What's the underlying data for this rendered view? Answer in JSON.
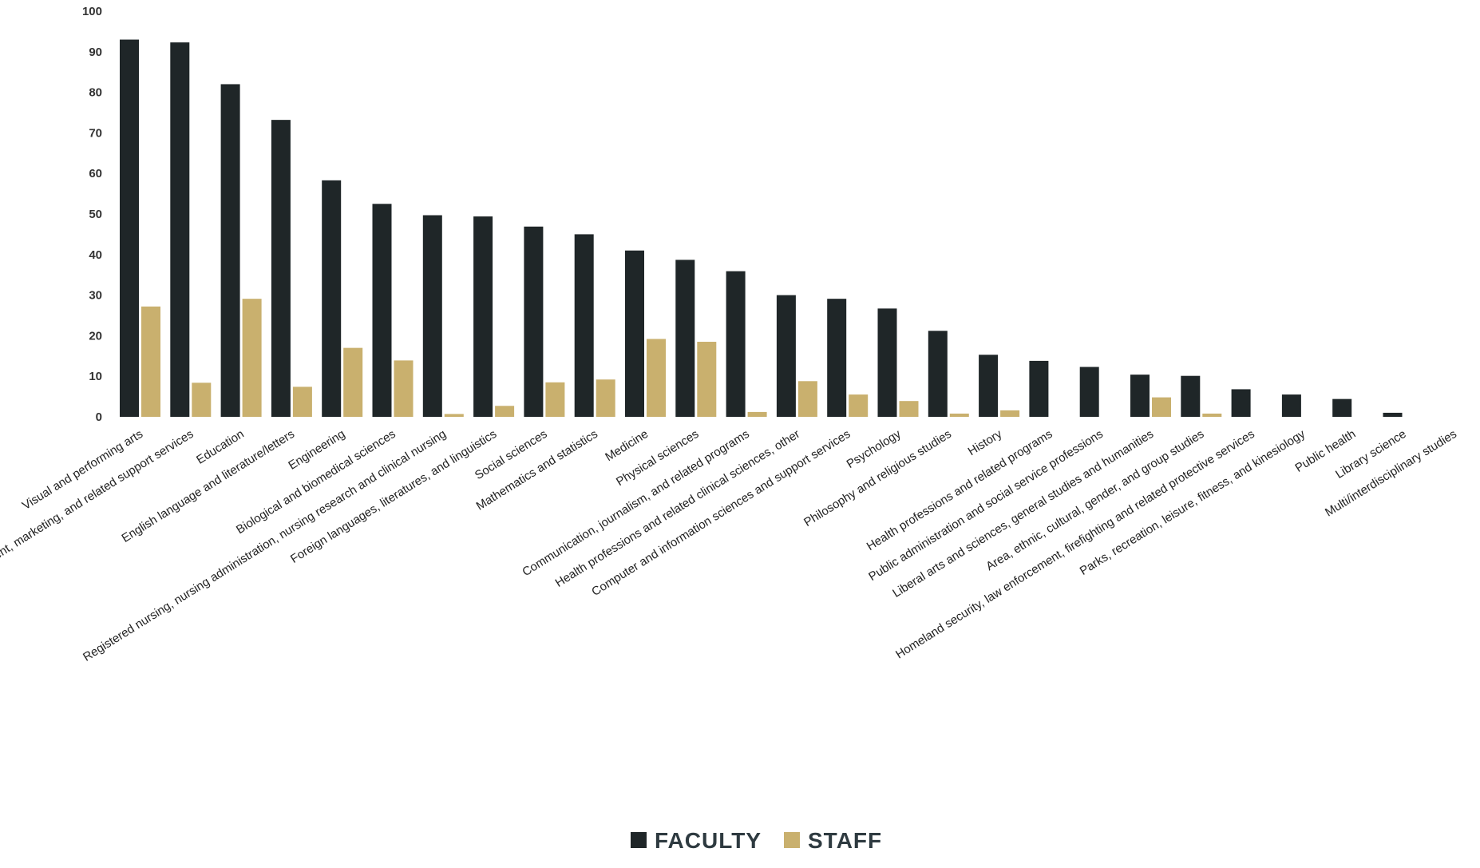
{
  "chart_data": {
    "type": "bar",
    "title": "",
    "xlabel": "",
    "ylabel": "",
    "ylim": [
      0,
      100
    ],
    "yticks": [
      0,
      10,
      20,
      30,
      40,
      50,
      60,
      70,
      80,
      90,
      100
    ],
    "grid": false,
    "legend_position": "bottom-center",
    "categories": [
      "Visual and performing arts",
      "Business, management, marketing, and related support services",
      "Education",
      "English language and literature/letters",
      "Engineering",
      "Biological and biomedical sciences",
      "Registered nursing, nursing administration, nursing research and clinical nursing",
      "Foreign languages, literatures, and linguistics",
      "Social sciences",
      "Mathematics and statistics",
      "Medicine",
      "Physical sciences",
      "Communication, journalism, and related programs",
      "Health professions and related clinical sciences, other",
      "Computer and information sciences and support services",
      "Psychology",
      "Philosophy and religious studies",
      "History",
      "Health professions and related programs",
      "Public administration and social service professions",
      "Liberal arts and sciences, general studies and humanities",
      "Area, ethnic, cultural, gender, and group studies",
      "Homeland security, law enforcement, firefighting and related protective services",
      "Parks, recreation, leisure, fitness, and kinesiology",
      "Public health",
      "Library science",
      "Multi/interdisciplinary studies"
    ],
    "series": [
      {
        "name": "FACULTY",
        "color": "#1f2628",
        "values": [
          93,
          92.3,
          82,
          73.2,
          58.3,
          52.5,
          49.7,
          49.4,
          46.9,
          45,
          41,
          38.7,
          35.9,
          30,
          29.1,
          26.7,
          21.2,
          15.3,
          13.8,
          12.3,
          10.4,
          10.1,
          6.8,
          5.5,
          4.4,
          1,
          0
        ]
      },
      {
        "name": "STAFF",
        "color": "#c9b06e",
        "values": [
          27.2,
          8.4,
          29.1,
          7.4,
          17,
          13.9,
          0.7,
          2.7,
          8.5,
          9.2,
          19.2,
          18.5,
          1.2,
          8.8,
          5.5,
          3.9,
          0.8,
          1.6,
          0,
          0,
          4.8,
          0.8,
          0,
          0,
          0,
          0,
          0
        ]
      }
    ]
  }
}
